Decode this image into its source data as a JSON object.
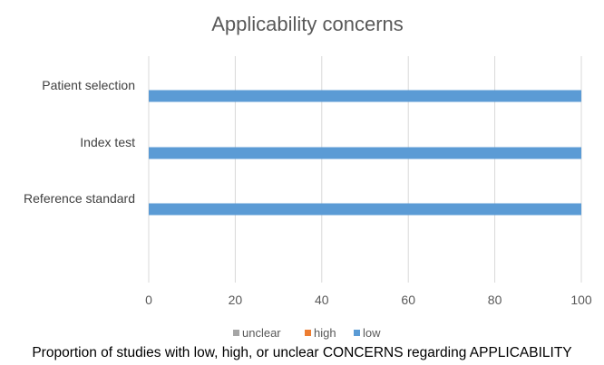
{
  "chart_data": {
    "type": "bar",
    "orientation": "horizontal",
    "stacked": true,
    "title": "Applicability concerns",
    "categories": [
      "Patient selection",
      "Index test",
      "Reference standard"
    ],
    "series": [
      {
        "name": "unclear",
        "color": "#a5a5a5",
        "values": [
          0,
          0,
          0
        ]
      },
      {
        "name": "high",
        "color": "#ed7d31",
        "values": [
          0,
          0,
          0
        ]
      },
      {
        "name": "low",
        "color": "#5b9bd5",
        "values": [
          100,
          100,
          100
        ]
      }
    ],
    "xlim": [
      0,
      100
    ],
    "xticks": [
      0,
      20,
      40,
      60,
      80,
      100
    ],
    "xtick_labels": [
      "0",
      "20",
      "40",
      "60",
      "80",
      "100"
    ],
    "grid": "vertical",
    "gridline_color": "#d9d9d9",
    "legend_position": "bottom",
    "caption": "Proportion of studies with low, high, or unclear CONCERNS regarding APPLICABILITY"
  }
}
